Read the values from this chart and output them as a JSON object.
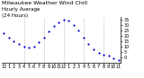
{
  "title_line1": "Milwaukee Weather Wind Chill",
  "title_line2": "Hourly Average",
  "title_line3": "(24 Hours)",
  "hours": [
    0,
    1,
    2,
    3,
    4,
    5,
    6,
    7,
    8,
    9,
    10,
    11,
    12,
    13,
    14,
    15,
    16,
    17,
    18,
    19,
    20,
    21,
    22,
    23
  ],
  "wind_chill": [
    22,
    18,
    15,
    12,
    10,
    9,
    10,
    14,
    18,
    24,
    29,
    32,
    35,
    34,
    30,
    25,
    18,
    12,
    7,
    4,
    2,
    1,
    -1,
    -3
  ],
  "dot_color": "#0000cc",
  "bg_color": "#ffffff",
  "grid_color": "#999999",
  "vgrid_positions": [
    4,
    8,
    12,
    16,
    20
  ],
  "ylim": [
    -5,
    37
  ],
  "ytick_values": [
    0,
    5,
    10,
    15,
    20,
    25,
    30,
    35
  ],
  "title_color": "#000000",
  "title_fontsize": 4.5,
  "tick_fontsize": 3.5,
  "dot_size": 2.5
}
